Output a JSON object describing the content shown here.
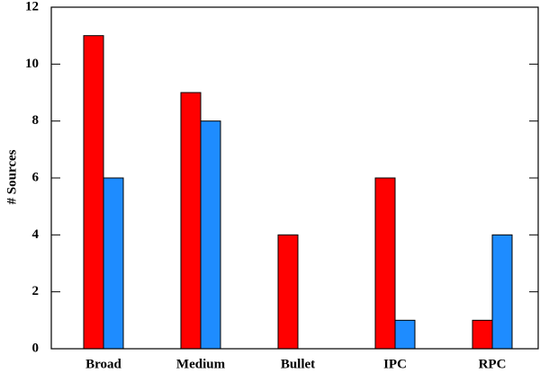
{
  "chart_data": {
    "type": "bar",
    "y_label": "# Sources",
    "categories": [
      "Broad",
      "Medium",
      "Bullet",
      "IPC",
      "RPC"
    ],
    "series": [
      {
        "color": "#ff0000",
        "values": [
          11,
          9,
          4,
          6,
          1
        ]
      },
      {
        "color": "#1e8cff",
        "values": [
          6,
          8,
          0,
          1,
          4
        ]
      }
    ],
    "ylim": [
      0,
      12
    ],
    "yticks": [
      0,
      2,
      4,
      6,
      8,
      10,
      12
    ]
  }
}
